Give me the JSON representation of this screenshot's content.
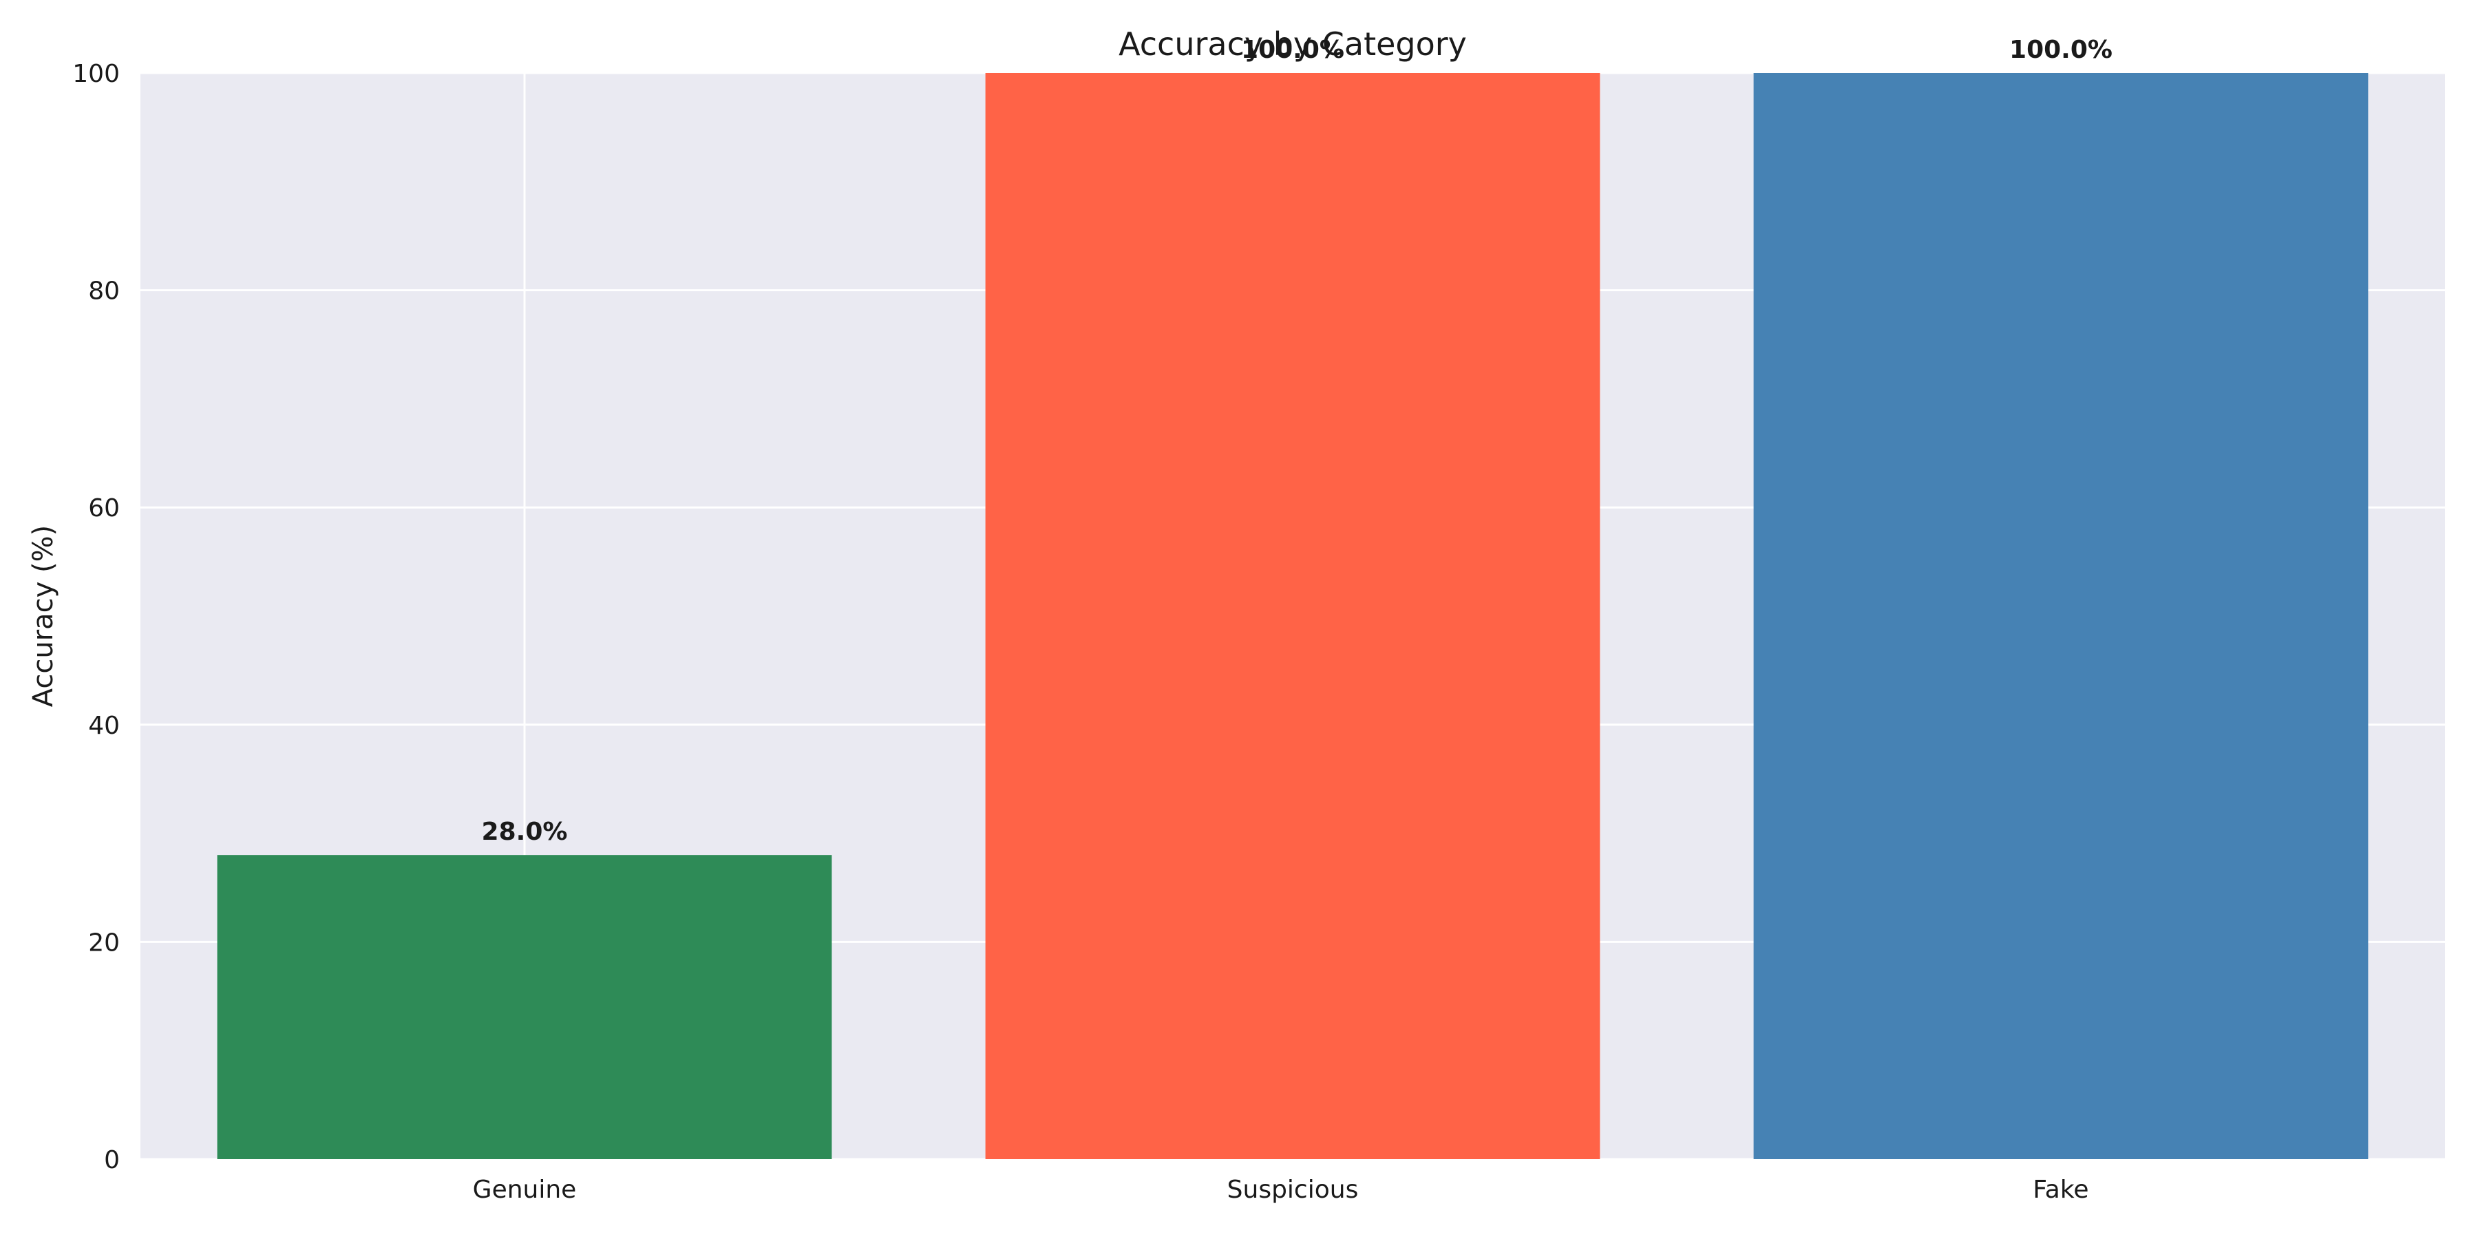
{
  "chart_data": {
    "type": "bar",
    "title": "Accuracy by Category",
    "xlabel": "",
    "ylabel": "Accuracy (%)",
    "categories": [
      "Genuine",
      "Suspicious",
      "Fake"
    ],
    "values": [
      28.0,
      100.0,
      100.0
    ],
    "value_labels": [
      "28.0%",
      "100.0%",
      "100.0%"
    ],
    "colors": [
      "#2e8b57",
      "#ff6347",
      "#4682b4"
    ],
    "ylim": [
      0,
      100
    ],
    "yticks": [
      0,
      20,
      40,
      60,
      80,
      100
    ],
    "ytick_labels": [
      "0",
      "20",
      "40",
      "60",
      "80",
      "100"
    ],
    "grid": true,
    "background": "#eaeaf2",
    "grid_color": "#ffffff"
  }
}
